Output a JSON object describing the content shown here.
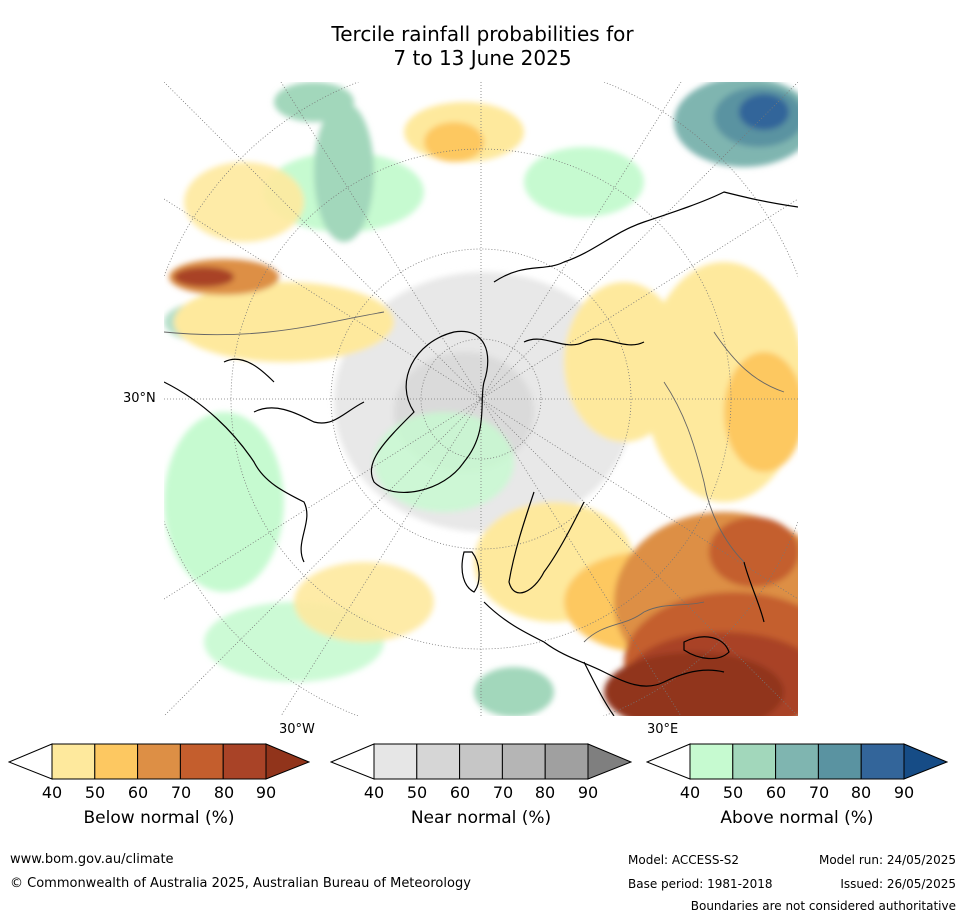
{
  "title": {
    "line1": "Tercile rainfall probabilities for",
    "line2": "7 to 13 June 2025"
  },
  "map": {
    "lat_label": "30°N",
    "lon_label_west": "30°W",
    "lon_label_east": "30°E"
  },
  "legend": {
    "below": {
      "label": "Below normal (%)",
      "ticks": [
        "40",
        "50",
        "60",
        "70",
        "80",
        "90"
      ],
      "colors": [
        "#ffffff",
        "#fee99d",
        "#fdc861",
        "#dd8f45",
        "#c45e2d",
        "#a94327",
        "#91341b"
      ]
    },
    "near": {
      "label": "Near normal (%)",
      "ticks": [
        "40",
        "50",
        "60",
        "70",
        "80",
        "90"
      ],
      "colors": [
        "#ffffff",
        "#e6e6e6",
        "#d6d6d6",
        "#c6c6c6",
        "#b5b5b5",
        "#a0a0a0",
        "#7f7f7f"
      ]
    },
    "above": {
      "label": "Above normal (%)",
      "ticks": [
        "40",
        "50",
        "60",
        "70",
        "80",
        "90"
      ],
      "colors": [
        "#ffffff",
        "#c6fad0",
        "#a2d7bb",
        "#7fb5b0",
        "#5a93a1",
        "#33659a",
        "#164c86"
      ]
    }
  },
  "footer": {
    "website": "www.bom.gov.au/climate",
    "copyright": "© Commonwealth of Australia 2025, Australian Bureau of Meteorology",
    "model": "Model: ACCESS-S2",
    "model_run": "Model run: 24/05/2025",
    "base_period": "Base period: 1981-2018",
    "issued": "Issued: 26/05/2025",
    "disclaimer": "Boundaries are not considered authoritative"
  }
}
